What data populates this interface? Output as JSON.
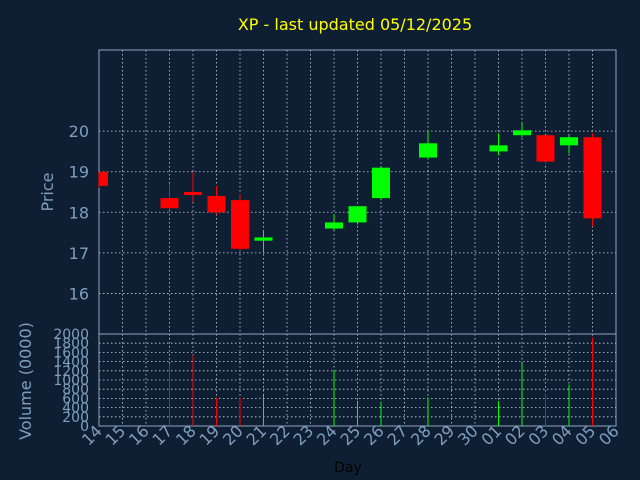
{
  "chart_data": {
    "type": "candlestick",
    "title": "XP - last updated 05/12/2025",
    "xlabel": "Day",
    "ylabel_price": "Price",
    "ylabel_volume": "Volume (0000)",
    "x_ticks": [
      "14",
      "15",
      "16",
      "17",
      "18",
      "19",
      "20",
      "21",
      "22",
      "23",
      "24",
      "25",
      "26",
      "27",
      "28",
      "29",
      "30",
      "01",
      "02",
      "03",
      "04",
      "05",
      "06"
    ],
    "price_ticks": [
      16,
      17,
      18,
      19,
      20
    ],
    "price_range": [
      15,
      22
    ],
    "volume_ticks": [
      0,
      200,
      400,
      600,
      800,
      1000,
      1200,
      1400,
      1600,
      1800,
      2000
    ],
    "volume_range": [
      0,
      2000
    ],
    "grid": true,
    "colors": {
      "up": "#00ff00",
      "down": "#ff0000",
      "background": "#0f1f33"
    },
    "candles": [
      {
        "day": "14",
        "open": 19.0,
        "high": 19.0,
        "low": 18.6,
        "close": 18.65,
        "volume": 0
      },
      {
        "day": "17",
        "open": 18.35,
        "high": 18.7,
        "low": 18.05,
        "close": 18.1,
        "volume": 1350
      },
      {
        "day": "18",
        "open": 18.5,
        "high": 19.0,
        "low": 18.25,
        "close": 18.45,
        "volume": 1550
      },
      {
        "day": "19",
        "open": 18.4,
        "high": 18.65,
        "low": 17.95,
        "close": 18.0,
        "volume": 620
      },
      {
        "day": "20",
        "open": 18.3,
        "high": 18.45,
        "low": 17.05,
        "close": 17.1,
        "volume": 620
      },
      {
        "day": "21",
        "open": 17.3,
        "high": 17.55,
        "low": 17.0,
        "close": 17.38,
        "volume": 700
      },
      {
        "day": "24",
        "open": 17.6,
        "high": 17.95,
        "low": 17.55,
        "close": 17.75,
        "volume": 1220
      },
      {
        "day": "25",
        "open": 17.75,
        "high": 18.15,
        "low": 17.7,
        "close": 18.15,
        "volume": 550
      },
      {
        "day": "26",
        "open": 18.35,
        "high": 19.1,
        "low": 18.3,
        "close": 19.1,
        "volume": 530
      },
      {
        "day": "28",
        "open": 19.35,
        "high": 20.0,
        "low": 19.3,
        "close": 19.7,
        "volume": 620
      },
      {
        "day": "01",
        "open": 19.5,
        "high": 19.95,
        "low": 19.4,
        "close": 19.65,
        "volume": 540
      },
      {
        "day": "02",
        "open": 19.9,
        "high": 20.2,
        "low": 19.85,
        "close": 20.02,
        "volume": 1360
      },
      {
        "day": "03",
        "open": 19.9,
        "high": 19.9,
        "low": 19.2,
        "close": 19.25,
        "volume": 700
      },
      {
        "day": "04",
        "open": 19.65,
        "high": 19.9,
        "low": 19.45,
        "close": 19.85,
        "volume": 900
      },
      {
        "day": "05",
        "open": 19.85,
        "high": 19.95,
        "low": 17.65,
        "close": 17.85,
        "volume": 1920
      }
    ]
  }
}
